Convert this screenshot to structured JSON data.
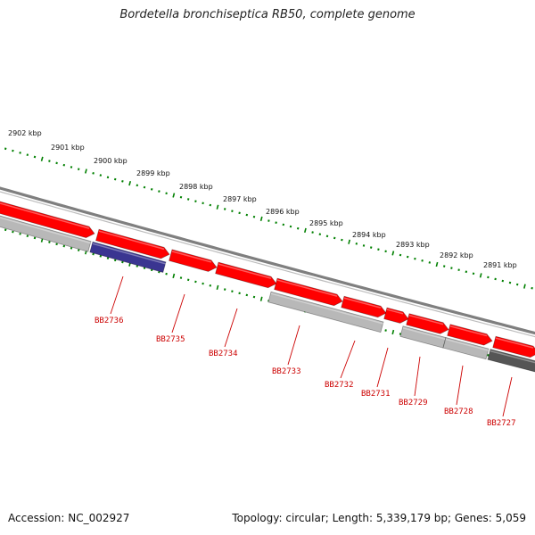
{
  "title": "Bordetella bronchiseptica RB50, complete genome",
  "accession": "Accession: NC_002927",
  "topology": "Topology: circular; Length: 5,339,179 bp; Genes: 5,059",
  "colors": {
    "ruler": "#008000",
    "backbone": "#7f7f7f",
    "forward_gene": "#ff0000",
    "reverse_gene_light": "#b8b8b8",
    "reverse_gene_dark": "#555555",
    "highlight_gene": "#3a3591",
    "label": "#cc0000"
  },
  "ruler": {
    "labels": [
      "2902 kbp",
      "2901 kbp",
      "2900 kbp",
      "2899 kbp",
      "2898 kbp",
      "2897 kbp",
      "2896 kbp",
      "2895 kbp",
      "2894 kbp",
      "2893 kbp",
      "2892 kbp",
      "2891 kbp"
    ]
  },
  "genes": [
    {
      "name": "BB2736",
      "strand": "reverse",
      "color": "highlight_gene"
    },
    {
      "name": "BB2735",
      "strand": "forward",
      "color": "forward_gene"
    },
    {
      "name": "BB2734",
      "strand": "forward",
      "color": "forward_gene"
    },
    {
      "name": "BB2733",
      "strand": "reverse",
      "color": "reverse_gene_light"
    },
    {
      "name": "BB2732",
      "strand": "forward",
      "color": "forward_gene"
    },
    {
      "name": "BB2731",
      "strand": "forward",
      "color": "forward_gene"
    },
    {
      "name": "BB2729",
      "strand": "reverse",
      "color": "reverse_gene_light"
    },
    {
      "name": "BB2728",
      "strand": "reverse",
      "color": "reverse_gene_light"
    },
    {
      "name": "BB2727",
      "strand": "reverse",
      "color": "reverse_gene_dark"
    }
  ]
}
